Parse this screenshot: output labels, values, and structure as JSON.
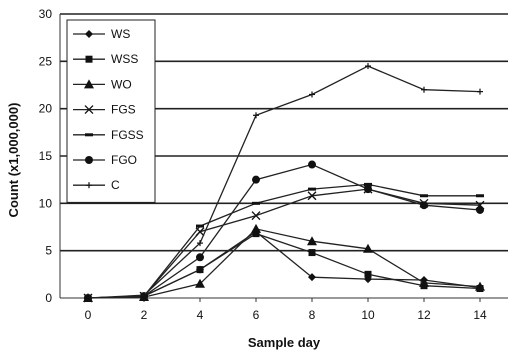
{
  "chart_data": {
    "type": "line",
    "title": "",
    "xlabel": "Sample day",
    "ylabel": "Count (x1,000,000)",
    "x": [
      0,
      2,
      4,
      6,
      8,
      10,
      12,
      14
    ],
    "x_ticks": [
      "0",
      "2",
      "4",
      "6",
      "8",
      "10",
      "12",
      "14"
    ],
    "y_ticks": [
      "0",
      "5",
      "10",
      "15",
      "20",
      "25",
      "30"
    ],
    "xlim": [
      -1,
      15
    ],
    "ylim": [
      0,
      30
    ],
    "grid": "horizontal",
    "legend_position": "top-left",
    "series": [
      {
        "name": "WS",
        "marker": "diamond",
        "values": [
          0,
          0.2,
          3.0,
          7.0,
          2.2,
          2.0,
          1.9,
          1.1
        ]
      },
      {
        "name": "WSS",
        "marker": "square",
        "values": [
          0,
          0.2,
          3.0,
          6.8,
          4.8,
          2.5,
          1.3,
          1.0
        ]
      },
      {
        "name": "WO",
        "marker": "triangle",
        "values": [
          0,
          0.1,
          1.5,
          7.3,
          6.0,
          5.2,
          1.6,
          1.2
        ]
      },
      {
        "name": "FGS",
        "marker": "x",
        "values": [
          0,
          0.2,
          7.0,
          8.7,
          10.8,
          11.5,
          10.0,
          9.8
        ]
      },
      {
        "name": "FGSS",
        "marker": "dash",
        "values": [
          0,
          0.2,
          7.6,
          10.0,
          11.5,
          12.0,
          10.8,
          10.8
        ]
      },
      {
        "name": "FGO",
        "marker": "circle",
        "values": [
          0,
          0.2,
          4.3,
          12.5,
          14.1,
          11.5,
          9.8,
          9.3
        ]
      },
      {
        "name": "C",
        "marker": "plus",
        "values": [
          0,
          0.3,
          5.8,
          19.3,
          21.5,
          24.5,
          22.0,
          21.8
        ]
      }
    ]
  }
}
